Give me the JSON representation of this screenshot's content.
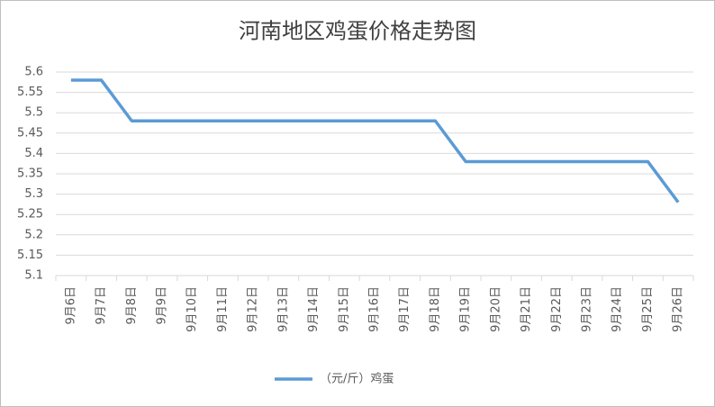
{
  "chart_data": {
    "type": "line",
    "title": "河南地区鸡蛋价格走势图",
    "categories": [
      "9月6日",
      "9月7日",
      "9月8日",
      "9月9日",
      "9月10日",
      "9月11日",
      "9月12日",
      "9月13日",
      "9月14日",
      "9月15日",
      "9月16日",
      "9月17日",
      "9月18日",
      "9月19日",
      "9月20日",
      "9月21日",
      "9月22日",
      "9月23日",
      "9月24日",
      "9月25日",
      "9月26日"
    ],
    "series": [
      {
        "name": "（元/斤）鸡蛋",
        "color": "#5b9bd5",
        "values": [
          5.58,
          5.58,
          5.48,
          5.48,
          5.48,
          5.48,
          5.48,
          5.48,
          5.48,
          5.48,
          5.48,
          5.48,
          5.48,
          5.38,
          5.38,
          5.38,
          5.38,
          5.38,
          5.38,
          5.38,
          5.28
        ]
      }
    ],
    "ylim": [
      5.1,
      5.6
    ],
    "yticks": [
      5.1,
      5.15,
      5.2,
      5.25,
      5.3,
      5.35,
      5.4,
      5.45,
      5.5,
      5.55,
      5.6
    ],
    "grid": true,
    "legend": "bottom"
  }
}
